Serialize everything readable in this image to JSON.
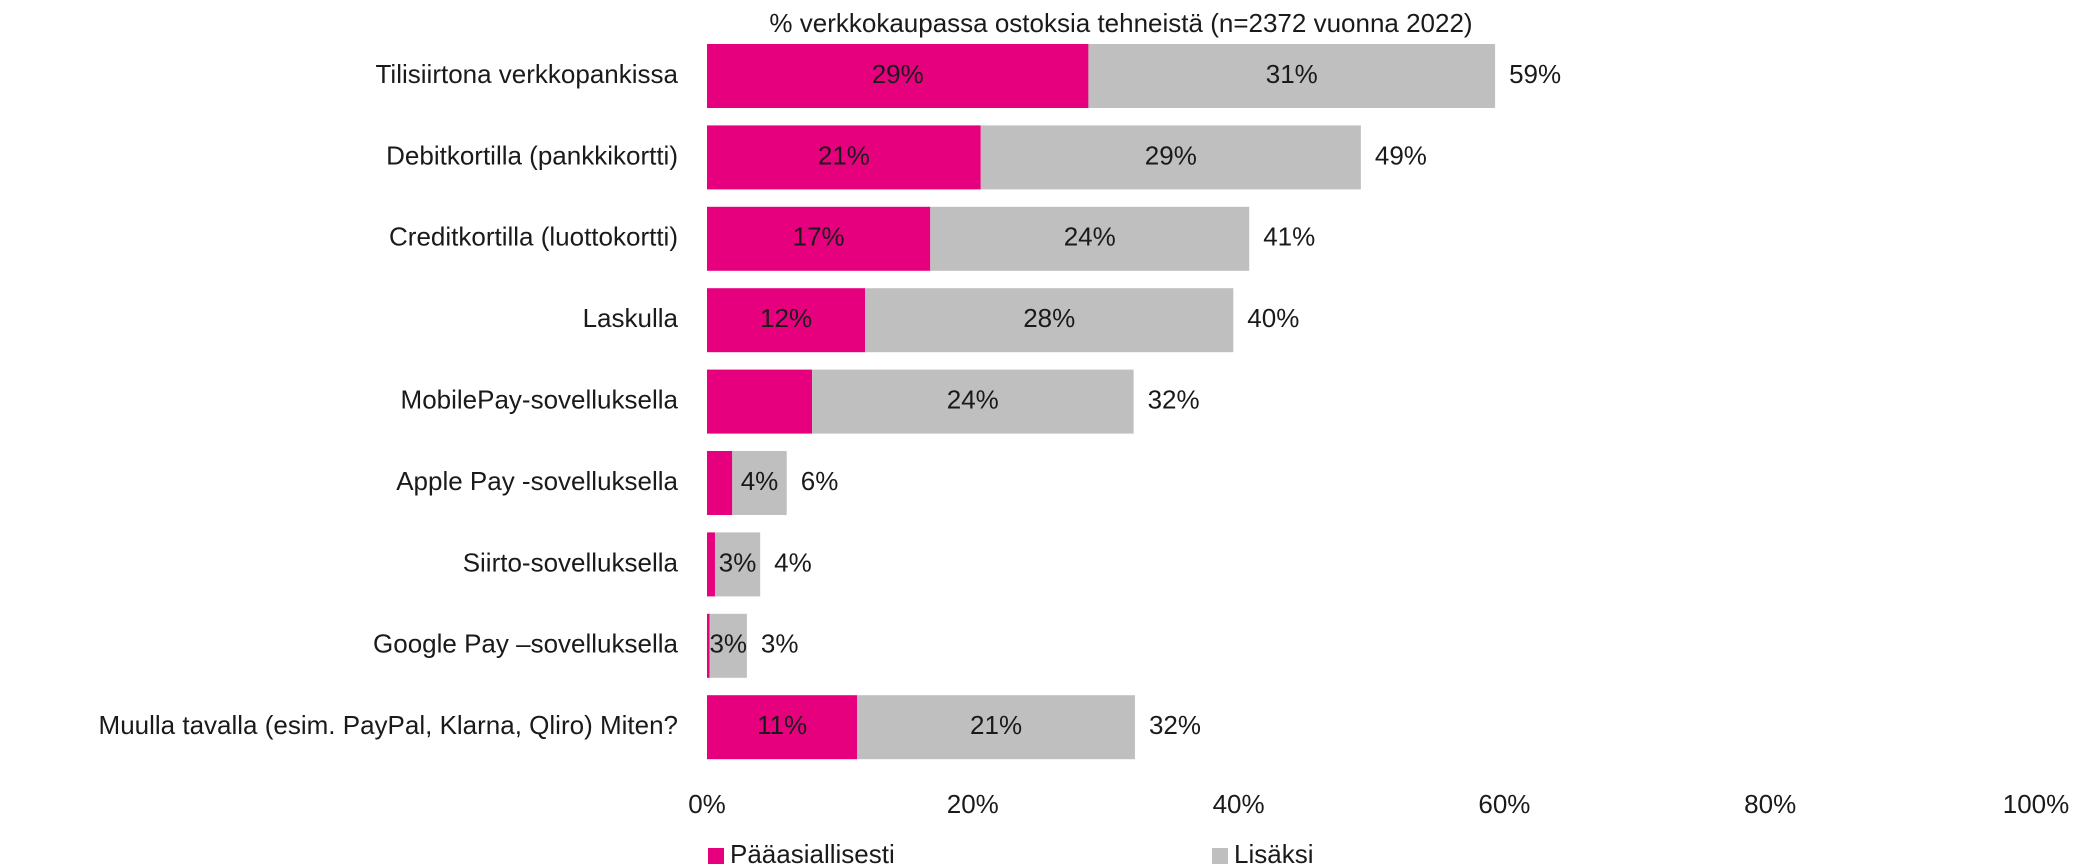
{
  "chart_data": {
    "type": "stacked-barh",
    "title": "% verkkokaupassa ostoksia tehneistä (n=2372 vuonna 2022)",
    "categories": [
      "Tilisiirtona verkkopankissa",
      "Debitkortilla (pankkikortti)",
      "Creditkortilla (luottokortti)",
      "Laskulla",
      "MobilePay-sovelluksella",
      "Apple Pay -sovelluksella",
      "Siirto-sovelluksella",
      "Google Pay –sovelluksella",
      "Muulla tavalla (esim. PayPal, Klarna, Qliro) Miten?"
    ],
    "series": [
      {
        "name": "Pääasiallisesti",
        "color": "#e6007e",
        "label_color": "#ffffff",
        "values": [
          28.7,
          20.6,
          16.8,
          11.9,
          7.9,
          1.9,
          0.6,
          0.2,
          11.3
        ],
        "value_labels": [
          "29%",
          "21%",
          "17%",
          "12%",
          null,
          null,
          null,
          null,
          "11%"
        ]
      },
      {
        "name": "Lisäksi",
        "color": "#bfbfbf",
        "label_color": "#1a1a1a",
        "values": [
          30.6,
          28.6,
          24.0,
          27.7,
          24.2,
          4.1,
          3.4,
          2.8,
          20.9
        ],
        "value_labels": [
          "31%",
          "29%",
          "24%",
          "28%",
          "24%",
          "4%",
          "3%",
          "3%",
          "21%"
        ]
      }
    ],
    "totals": {
      "values": [
        59,
        49,
        41,
        40,
        32,
        6,
        4,
        3,
        32
      ],
      "value_labels": [
        "59%",
        "49%",
        "41%",
        "40%",
        "32%",
        "6%",
        "4%",
        "3%",
        "32%"
      ]
    },
    "xlim": [
      0,
      100
    ],
    "xticks": [
      {
        "value": 0,
        "label": "0%"
      },
      {
        "value": 20,
        "label": "20%"
      },
      {
        "value": 40,
        "label": "40%"
      },
      {
        "value": 60,
        "label": "60%"
      },
      {
        "value": 80,
        "label": "80%"
      },
      {
        "value": 100,
        "label": "100%"
      }
    ],
    "grid": false,
    "legend": "bottom"
  }
}
